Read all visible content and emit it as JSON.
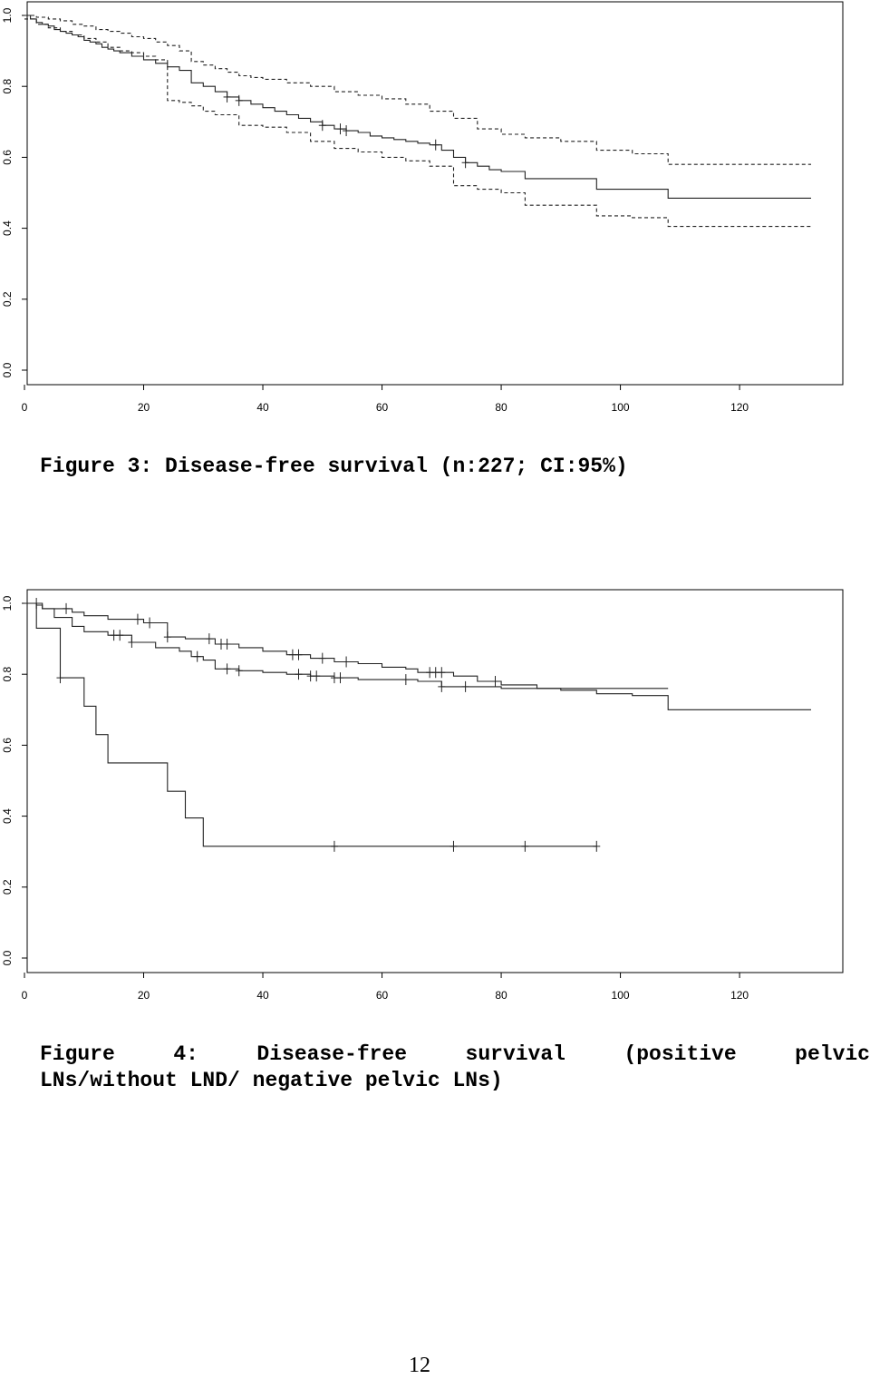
{
  "charts": [
    {
      "type": "line",
      "subtype": "kaplan-meier step",
      "xlim": [
        0,
        132
      ],
      "ylim": [
        0,
        1
      ],
      "x_ticks": [
        "0",
        "20",
        "40",
        "60",
        "80",
        "100",
        "120"
      ],
      "y_ticks": [
        "0.0",
        "0.2",
        "0.4",
        "0.6",
        "0.8",
        "1.0"
      ],
      "series": [
        {
          "style": "solid",
          "x": [
            0,
            1,
            2,
            3,
            4,
            5,
            6,
            7,
            8,
            9,
            10,
            11,
            12,
            13,
            14,
            15,
            16,
            18,
            20,
            22,
            24,
            26,
            28,
            30,
            32,
            34,
            36,
            38,
            40,
            42,
            44,
            46,
            48,
            50,
            52,
            54,
            56,
            58,
            60,
            62,
            64,
            66,
            68,
            70,
            72,
            74,
            76,
            78,
            80,
            84,
            90,
            96,
            102,
            108,
            132
          ],
          "y": [
            1.0,
            0.99,
            0.98,
            0.975,
            0.97,
            0.96,
            0.955,
            0.95,
            0.945,
            0.94,
            0.93,
            0.925,
            0.92,
            0.91,
            0.905,
            0.9,
            0.895,
            0.885,
            0.875,
            0.865,
            0.855,
            0.845,
            0.81,
            0.8,
            0.785,
            0.77,
            0.76,
            0.75,
            0.74,
            0.73,
            0.72,
            0.71,
            0.7,
            0.69,
            0.68,
            0.675,
            0.67,
            0.66,
            0.655,
            0.65,
            0.645,
            0.64,
            0.635,
            0.62,
            0.6,
            0.585,
            0.575,
            0.565,
            0.56,
            0.54,
            0.54,
            0.51,
            0.51,
            0.485,
            0.485
          ],
          "censor_x": [
            34,
            36,
            50,
            53,
            54,
            69,
            74
          ]
        },
        {
          "style": "dashed",
          "x": [
            0,
            2,
            4,
            6,
            8,
            10,
            12,
            14,
            16,
            18,
            20,
            22,
            24,
            26,
            28,
            30,
            32,
            34,
            36,
            38,
            40,
            44,
            48,
            52,
            56,
            60,
            64,
            68,
            72,
            76,
            80,
            84,
            90,
            96,
            102,
            108,
            132
          ],
          "y": [
            1.0,
            0.995,
            0.99,
            0.985,
            0.975,
            0.97,
            0.96,
            0.955,
            0.95,
            0.94,
            0.935,
            0.925,
            0.915,
            0.9,
            0.87,
            0.86,
            0.85,
            0.84,
            0.83,
            0.825,
            0.82,
            0.81,
            0.8,
            0.785,
            0.775,
            0.765,
            0.75,
            0.73,
            0.71,
            0.68,
            0.665,
            0.655,
            0.645,
            0.62,
            0.61,
            0.58,
            0.58
          ]
        },
        {
          "style": "dashed",
          "x": [
            0,
            2,
            4,
            6,
            8,
            10,
            12,
            14,
            16,
            18,
            20,
            22,
            24,
            26,
            28,
            30,
            32,
            36,
            40,
            44,
            48,
            52,
            56,
            60,
            64,
            68,
            72,
            76,
            80,
            84,
            90,
            96,
            102,
            108,
            132
          ],
          "y": [
            0.99,
            0.975,
            0.965,
            0.955,
            0.945,
            0.935,
            0.925,
            0.91,
            0.9,
            0.895,
            0.885,
            0.875,
            0.76,
            0.755,
            0.745,
            0.73,
            0.72,
            0.69,
            0.685,
            0.67,
            0.645,
            0.625,
            0.615,
            0.6,
            0.59,
            0.575,
            0.52,
            0.51,
            0.5,
            0.465,
            0.465,
            0.435,
            0.43,
            0.405,
            0.405
          ]
        }
      ]
    },
    {
      "type": "line",
      "subtype": "kaplan-meier step",
      "xlim": [
        0,
        132
      ],
      "ylim": [
        0,
        1
      ],
      "x_ticks": [
        "0",
        "20",
        "40",
        "60",
        "80",
        "100",
        "120"
      ],
      "y_ticks": [
        "0.0",
        "0.2",
        "0.4",
        "0.6",
        "0.8",
        "1.0"
      ],
      "series": [
        {
          "style": "solid",
          "x": [
            0,
            2,
            3,
            8,
            10,
            14,
            20,
            24,
            27,
            32,
            36,
            40,
            44,
            48,
            52,
            56,
            60,
            64,
            66,
            72,
            76,
            80,
            86,
            90,
            96,
            102,
            108,
            132
          ],
          "y": [
            1.0,
            0.995,
            0.985,
            0.975,
            0.965,
            0.955,
            0.945,
            0.905,
            0.9,
            0.885,
            0.875,
            0.865,
            0.855,
            0.845,
            0.835,
            0.83,
            0.82,
            0.815,
            0.805,
            0.795,
            0.78,
            0.77,
            0.76,
            0.755,
            0.745,
            0.74,
            0.7,
            0.7
          ],
          "censor_x": [
            7,
            19,
            21,
            24,
            31,
            33,
            34,
            45,
            46,
            50,
            54,
            68,
            69,
            70,
            79
          ]
        },
        {
          "style": "solid",
          "x": [
            0,
            3,
            5,
            8,
            10,
            14,
            18,
            22,
            26,
            28,
            30,
            32,
            36,
            40,
            44,
            48,
            52,
            56,
            60,
            66,
            70,
            80,
            90,
            96,
            108
          ],
          "y": [
            1.0,
            0.985,
            0.96,
            0.935,
            0.92,
            0.91,
            0.89,
            0.875,
            0.865,
            0.85,
            0.84,
            0.815,
            0.81,
            0.805,
            0.8,
            0.795,
            0.79,
            0.785,
            0.785,
            0.78,
            0.765,
            0.76,
            0.76,
            0.76,
            0.76
          ],
          "censor_x": [
            2,
            15,
            16,
            18,
            29,
            34,
            36,
            46,
            48,
            49,
            52,
            53,
            64,
            70,
            74
          ]
        },
        {
          "style": "solid",
          "x": [
            0,
            2,
            6,
            10,
            12,
            14,
            18,
            24,
            27,
            30,
            96
          ],
          "y": [
            1.0,
            0.93,
            0.79,
            0.71,
            0.63,
            0.55,
            0.55,
            0.47,
            0.395,
            0.315,
            0.315
          ],
          "censor_x": [
            6,
            52,
            72,
            84,
            96
          ]
        }
      ]
    }
  ],
  "captions": {
    "figure3": "Figure 3: Disease-free survival (n:227; CI:95%)",
    "figure4_words": [
      "Figure",
      "4:",
      "Disease-free",
      "survival",
      "(positive",
      "pelvic"
    ],
    "figure4_line2": "LNs/without LND/ negative pelvic LNs)"
  },
  "page_number": "12"
}
